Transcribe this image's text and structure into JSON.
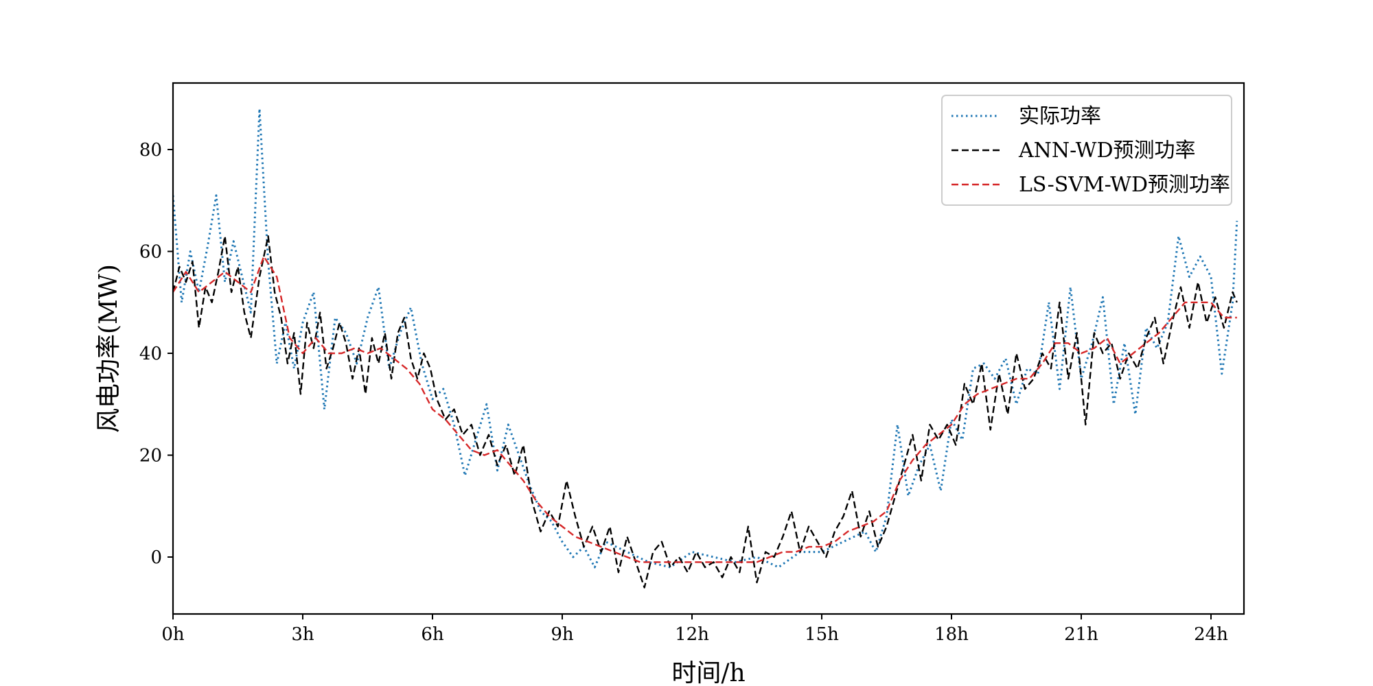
{
  "chart_data": {
    "type": "line",
    "title": "",
    "xlabel": "时间/h",
    "ylabel": "风电功率(MW)",
    "xlim": [
      0,
      24.65
    ],
    "ylim": [
      -11,
      93
    ],
    "x_ticks": [
      0,
      3,
      6,
      9,
      12,
      15,
      18,
      21,
      24
    ],
    "x_tick_labels": [
      "0h",
      "3h",
      "6h",
      "9h",
      "12h",
      "15h",
      "18h",
      "21h",
      "24h"
    ],
    "y_ticks": [
      0,
      20,
      40,
      60,
      80
    ],
    "y_tick_labels": [
      "0",
      "20",
      "40",
      "60",
      "80"
    ],
    "grid": false,
    "legend_position": "top-right",
    "series": [
      {
        "name": "实际功率",
        "color": "#1f77b4",
        "style": "dotted",
        "x": [
          0,
          0.2,
          0.4,
          0.6,
          0.8,
          1.0,
          1.2,
          1.4,
          1.6,
          1.8,
          2.0,
          2.2,
          2.4,
          2.6,
          2.8,
          3.0,
          3.25,
          3.5,
          3.75,
          4.0,
          4.25,
          4.5,
          4.75,
          5.0,
          5.25,
          5.5,
          5.75,
          6.0,
          6.25,
          6.5,
          6.75,
          7.0,
          7.25,
          7.5,
          7.75,
          8.0,
          8.25,
          8.5,
          8.75,
          9.0,
          9.25,
          9.5,
          9.75,
          10.0,
          10.5,
          11.0,
          11.5,
          12.0,
          12.5,
          13.0,
          13.5,
          14.0,
          14.5,
          15.0,
          15.5,
          16.0,
          16.25,
          16.5,
          16.75,
          17.0,
          17.25,
          17.5,
          17.75,
          18.0,
          18.25,
          18.5,
          18.75,
          19.0,
          19.25,
          19.5,
          19.75,
          20.0,
          20.25,
          20.5,
          20.75,
          21.0,
          21.25,
          21.5,
          21.75,
          22.0,
          22.25,
          22.5,
          22.75,
          23.0,
          23.25,
          23.5,
          23.75,
          24.0,
          24.25,
          24.5,
          24.6
        ],
        "values": [
          71,
          50,
          60,
          52,
          61,
          71,
          54,
          62,
          55,
          48,
          88,
          58,
          38,
          46,
          37,
          46,
          52,
          29,
          47,
          44,
          38,
          47,
          53,
          37,
          44,
          49,
          38,
          31,
          33,
          26,
          16,
          23,
          30,
          17,
          26,
          20,
          14,
          9,
          7,
          3,
          0,
          2,
          -2,
          3,
          1,
          -1,
          -2,
          1,
          0,
          -1,
          0,
          -2,
          1,
          1,
          3,
          5,
          1,
          8,
          26,
          12,
          18,
          22,
          13,
          27,
          23,
          37,
          38,
          35,
          39,
          30,
          37,
          36,
          50,
          33,
          53,
          35,
          42,
          51,
          30,
          42,
          28,
          45,
          41,
          46,
          63,
          55,
          59,
          55,
          36,
          50,
          66
        ]
      },
      {
        "name": "ANN-WD预测功率",
        "color": "#000000",
        "style": "dashed",
        "x": [
          0,
          0.15,
          0.3,
          0.45,
          0.6,
          0.75,
          0.9,
          1.05,
          1.2,
          1.35,
          1.5,
          1.65,
          1.8,
          2.0,
          2.2,
          2.35,
          2.5,
          2.65,
          2.8,
          2.95,
          3.1,
          3.25,
          3.4,
          3.55,
          3.7,
          3.85,
          4.0,
          4.15,
          4.3,
          4.45,
          4.6,
          4.75,
          4.9,
          5.05,
          5.2,
          5.35,
          5.5,
          5.65,
          5.8,
          5.95,
          6.1,
          6.3,
          6.5,
          6.7,
          6.9,
          7.1,
          7.3,
          7.5,
          7.7,
          7.9,
          8.1,
          8.3,
          8.5,
          8.7,
          8.9,
          9.1,
          9.3,
          9.5,
          9.7,
          9.9,
          10.1,
          10.3,
          10.5,
          10.7,
          10.9,
          11.1,
          11.3,
          11.5,
          11.7,
          11.9,
          12.1,
          12.3,
          12.5,
          12.7,
          12.9,
          13.1,
          13.3,
          13.5,
          13.7,
          13.9,
          14.1,
          14.3,
          14.5,
          14.7,
          14.9,
          15.1,
          15.3,
          15.5,
          15.7,
          15.9,
          16.1,
          16.3,
          16.5,
          16.7,
          16.9,
          17.1,
          17.3,
          17.5,
          17.7,
          17.9,
          18.1,
          18.3,
          18.5,
          18.7,
          18.9,
          19.1,
          19.3,
          19.5,
          19.7,
          19.9,
          20.1,
          20.3,
          20.5,
          20.7,
          20.9,
          21.1,
          21.3,
          21.5,
          21.7,
          21.9,
          22.1,
          22.3,
          22.5,
          22.7,
          22.9,
          23.1,
          23.3,
          23.5,
          23.7,
          23.9,
          24.1,
          24.3,
          24.5,
          24.6
        ],
        "values": [
          52,
          57,
          54,
          58,
          45,
          53,
          50,
          56,
          63,
          52,
          57,
          48,
          43,
          55,
          63,
          52,
          47,
          38,
          44,
          32,
          46,
          41,
          48,
          37,
          41,
          46,
          42,
          35,
          41,
          32,
          43,
          38,
          44,
          35,
          44,
          47,
          39,
          35,
          40,
          37,
          31,
          27,
          29,
          24,
          26,
          20,
          24,
          18,
          22,
          16,
          22,
          11,
          5,
          9,
          6,
          15,
          8,
          2,
          6,
          1,
          6,
          -3,
          4,
          -1,
          -6,
          1,
          3,
          -2,
          0,
          -3,
          1,
          -2,
          -1,
          -4,
          0,
          -3,
          6,
          -5,
          1,
          0,
          4,
          9,
          1,
          6,
          3,
          0,
          5,
          8,
          13,
          4,
          9,
          2,
          6,
          12,
          18,
          24,
          15,
          26,
          23,
          26,
          22,
          34,
          30,
          38,
          25,
          36,
          28,
          40,
          33,
          35,
          40,
          37,
          50,
          35,
          44,
          26,
          44,
          40,
          42,
          35,
          40,
          37,
          43,
          47,
          38,
          46,
          53,
          45,
          54,
          46,
          51,
          45,
          52,
          50
        ]
      },
      {
        "name": "LS-SVM-WD预测功率",
        "color": "#d62728",
        "style": "dashed",
        "x": [
          0,
          0.3,
          0.6,
          0.9,
          1.2,
          1.5,
          1.8,
          2.1,
          2.4,
          2.7,
          3.0,
          3.3,
          3.6,
          3.9,
          4.2,
          4.5,
          4.8,
          5.1,
          5.4,
          5.7,
          6.0,
          6.3,
          6.6,
          6.9,
          7.2,
          7.5,
          7.8,
          8.1,
          8.4,
          8.7,
          9.0,
          9.3,
          9.6,
          9.9,
          10.2,
          10.5,
          10.8,
          11.1,
          11.4,
          11.7,
          12.0,
          12.3,
          12.6,
          12.9,
          13.2,
          13.5,
          13.8,
          14.1,
          14.4,
          14.7,
          15.0,
          15.3,
          15.6,
          15.9,
          16.2,
          16.5,
          16.8,
          17.1,
          17.4,
          17.7,
          18.0,
          18.3,
          18.6,
          18.9,
          19.2,
          19.5,
          19.8,
          20.1,
          20.4,
          20.7,
          21.0,
          21.3,
          21.6,
          21.9,
          22.2,
          22.5,
          22.8,
          23.1,
          23.4,
          23.7,
          24.0,
          24.3,
          24.6
        ],
        "values": [
          52,
          56,
          52,
          54,
          56,
          54,
          52,
          59,
          55,
          43,
          40,
          43,
          40,
          40,
          41,
          40,
          41,
          39,
          37,
          34,
          29,
          27,
          24,
          21,
          20,
          21,
          18,
          15,
          11,
          8,
          6,
          4,
          3,
          2,
          1,
          0,
          -1,
          -1,
          -1,
          -1,
          -1,
          -1,
          -1,
          -1,
          -1,
          -1,
          0,
          1,
          1,
          2,
          2,
          3,
          5,
          6,
          7,
          9,
          15,
          19,
          22,
          24,
          26,
          30,
          32,
          33,
          34,
          35,
          35,
          38,
          42,
          42,
          40,
          41,
          43,
          38,
          40,
          42,
          44,
          47,
          50,
          50,
          50,
          47,
          47
        ]
      }
    ]
  }
}
